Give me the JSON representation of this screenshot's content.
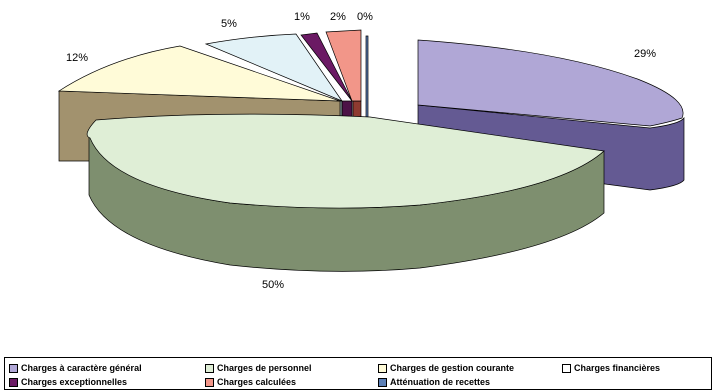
{
  "chart_data": {
    "type": "pie",
    "title": "",
    "categories": [
      "Charges à caractère général",
      "Charges de personnel",
      "Charges de gestion courante",
      "Charges financières",
      "Charges exceptionnelles",
      "Charges calculées",
      "Atténuation de recettes"
    ],
    "values": [
      29,
      50,
      12,
      5,
      1,
      2,
      0
    ],
    "labels": [
      "29%",
      "50%",
      "12%",
      "5%",
      "1%",
      "2%",
      "0%"
    ],
    "colors": {
      "Charges à caractère général": {
        "top": "#b0a7d6",
        "side": "#645a93"
      },
      "Charges de personnel": {
        "top": "#dfeed6",
        "side": "#7e8f6f"
      },
      "Charges de gestion courante": {
        "top": "#fffbd8",
        "side": "#a2926e"
      },
      "Charges financières": {
        "top": "#e2f2f7",
        "side": "#7f9495"
      },
      "Charges exceptionnelles": {
        "top": "#6b1a64",
        "side": "#4c1247"
      },
      "Charges calculées": {
        "top": "#f29689",
        "side": "#8e3a30"
      },
      "Atténuation de recettes": {
        "top": "#5b7fb6",
        "side": "#2c4f7a"
      }
    },
    "legend_position": "bottom",
    "three_d": true,
    "exploded": true
  }
}
